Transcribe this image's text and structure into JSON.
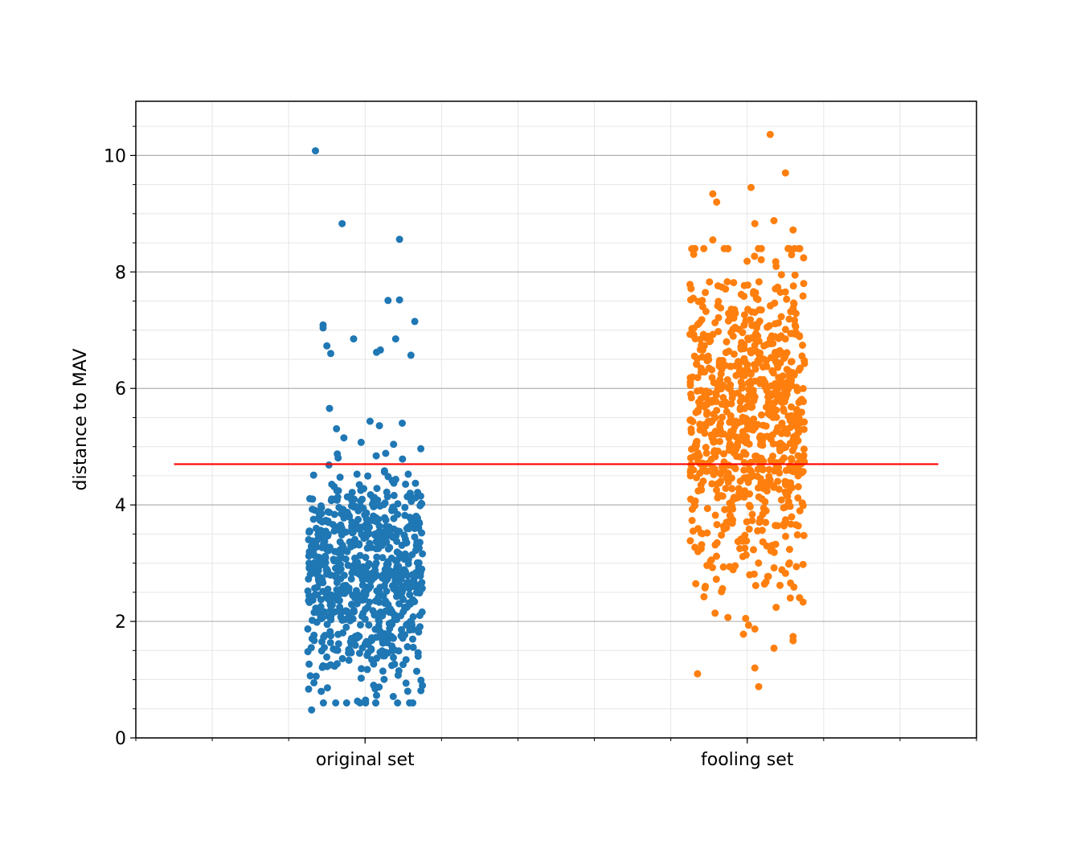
{
  "chart_data": {
    "type": "scatter",
    "title": "",
    "xlabel": "",
    "ylabel": "distance to MAV",
    "categories": [
      "original set",
      "fooling set"
    ],
    "xlim": [
      -0.6,
      1.6
    ],
    "ylim": [
      0,
      10.93
    ],
    "yticks": [
      "0",
      "2",
      "4",
      "6",
      "8",
      "10"
    ],
    "grid": {
      "major": true,
      "minor": true
    },
    "threshold": {
      "value": 4.7,
      "color": "#ff0000",
      "x_range": [
        -0.5,
        1.5
      ]
    },
    "series": [
      {
        "category": "original set",
        "color": "#1f77b4",
        "jitter": 0.15,
        "count": 750,
        "distribution": {
          "mean": 2.8,
          "sd": 0.95,
          "min": 0.6,
          "max": 5.8
        },
        "outliers": [
          {
            "x": -0.13,
            "y": 10.08
          },
          {
            "x": -0.06,
            "y": 8.83
          },
          {
            "x": 0.09,
            "y": 8.56
          },
          {
            "x": 0.06,
            "y": 7.51
          },
          {
            "x": 0.09,
            "y": 7.52
          },
          {
            "x": 0.13,
            "y": 7.15
          },
          {
            "x": -0.11,
            "y": 7.09
          },
          {
            "x": -0.11,
            "y": 7.04
          },
          {
            "x": -0.03,
            "y": 6.85
          },
          {
            "x": 0.08,
            "y": 6.85
          },
          {
            "x": 0.12,
            "y": 6.57
          },
          {
            "x": -0.1,
            "y": 6.73
          },
          {
            "x": -0.09,
            "y": 6.6
          },
          {
            "x": 0.03,
            "y": 6.62
          },
          {
            "x": 0.04,
            "y": 6.66
          },
          {
            "x": -0.14,
            "y": 0.48
          },
          {
            "x": -0.02,
            "y": 0.63
          },
          {
            "x": 0.03,
            "y": 0.73
          },
          {
            "x": 0.15,
            "y": 0.9
          }
        ]
      },
      {
        "category": "fooling set",
        "color": "#ff7f0e",
        "jitter": 0.15,
        "count": 850,
        "distribution": {
          "mean": 5.5,
          "sd": 1.4,
          "min": 1.5,
          "max": 8.4
        },
        "outliers": [
          {
            "x": 1.06,
            "y": 10.36
          },
          {
            "x": 1.1,
            "y": 9.7
          },
          {
            "x": 1.01,
            "y": 9.45
          },
          {
            "x": 0.91,
            "y": 9.34
          },
          {
            "x": 0.92,
            "y": 9.2
          },
          {
            "x": 1.07,
            "y": 8.88
          },
          {
            "x": 1.02,
            "y": 8.83
          },
          {
            "x": 1.12,
            "y": 8.72
          },
          {
            "x": 0.91,
            "y": 8.55
          },
          {
            "x": 0.87,
            "y": 1.1
          },
          {
            "x": 1.02,
            "y": 1.2
          },
          {
            "x": 1.03,
            "y": 0.88
          },
          {
            "x": 1.07,
            "y": 1.54
          },
          {
            "x": 1.12,
            "y": 1.74
          },
          {
            "x": 0.99,
            "y": 1.78
          },
          {
            "x": 1.02,
            "y": 1.87
          }
        ]
      }
    ]
  }
}
